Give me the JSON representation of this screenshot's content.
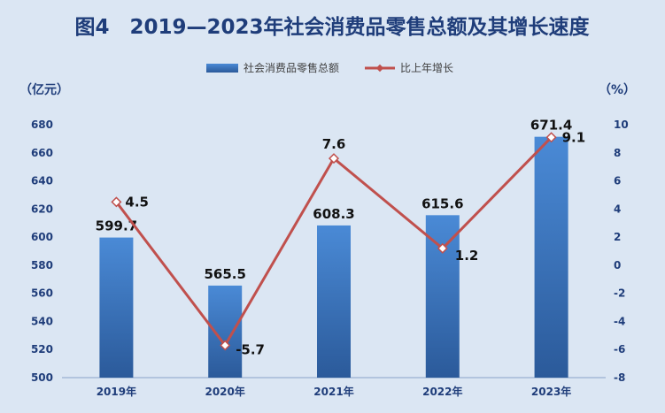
{
  "chart_data": {
    "type": "bar",
    "title": "图4　2019—2023年社会消费品零售总额及其增长速度",
    "categories": [
      "2019年",
      "2020年",
      "2021年",
      "2022年",
      "2023年"
    ],
    "series": [
      {
        "name": "社会消费品零售总额",
        "type": "bar",
        "axis": "left",
        "values": [
          599.7,
          565.5,
          608.3,
          615.6,
          671.4
        ],
        "color": "#3b78c4"
      },
      {
        "name": "比上年增长",
        "type": "line",
        "axis": "right",
        "values": [
          4.5,
          -5.7,
          7.6,
          1.2,
          9.1
        ],
        "color": "#c0504d"
      }
    ],
    "y_left": {
      "unit": "（亿元）",
      "ylim": [
        500,
        680
      ],
      "ticks": [
        500,
        520,
        540,
        560,
        580,
        600,
        620,
        640,
        660,
        680
      ]
    },
    "y_right": {
      "unit": "（%）",
      "ylim": [
        -8,
        10
      ],
      "ticks": [
        -8,
        -6,
        -4,
        -2,
        0,
        2,
        4,
        6,
        8,
        10
      ]
    },
    "grid": false,
    "legend": "top-center"
  }
}
